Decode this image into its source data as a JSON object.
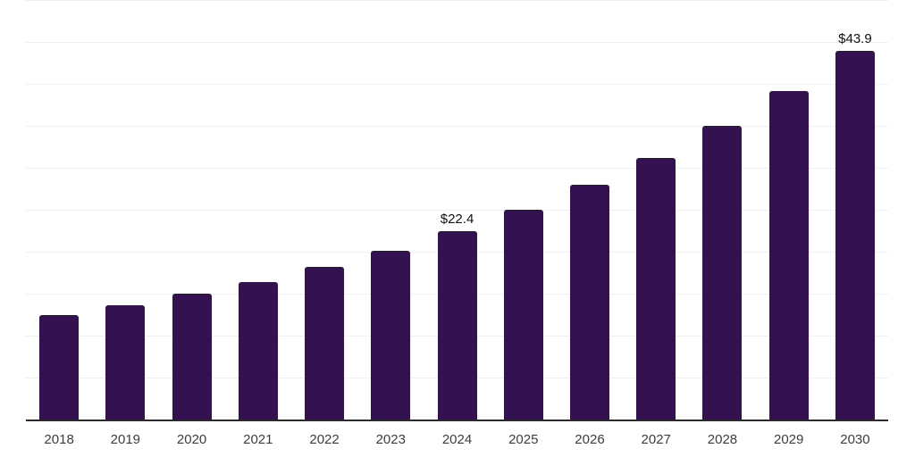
{
  "chart_data": {
    "type": "bar",
    "title": "",
    "xlabel": "",
    "ylabel": "",
    "categories": [
      "2018",
      "2019",
      "2020",
      "2021",
      "2022",
      "2023",
      "2024",
      "2025",
      "2026",
      "2027",
      "2028",
      "2029",
      "2030"
    ],
    "values": [
      12.4,
      13.6,
      15.0,
      16.4,
      18.2,
      20.1,
      22.4,
      25.0,
      28.0,
      31.2,
      35.0,
      39.1,
      43.9
    ],
    "data_labels": {
      "2024": "$22.4",
      "2030": "$43.9"
    },
    "ylim": [
      0,
      50
    ],
    "grid_step": 5,
    "grid_on": true,
    "legend": "none",
    "colors": {
      "bar": "#341151",
      "axis": "#2b2b2b",
      "grid": "#f0f0f0",
      "data_label": "#111111",
      "tick_label": "#3d3d3d",
      "background": "#ffffff"
    }
  }
}
